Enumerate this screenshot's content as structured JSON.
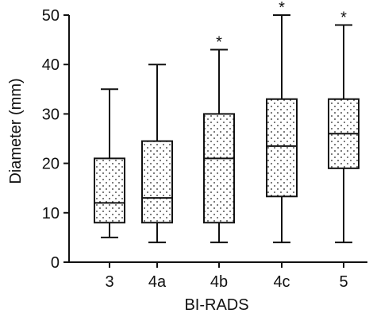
{
  "chart_data": {
    "type": "box",
    "title": "",
    "xlabel": "BI-RADS",
    "ylabel": "Diameter (mm)",
    "ylim": [
      0,
      50
    ],
    "yticks": [
      "0",
      "10",
      "20",
      "30",
      "40",
      "50"
    ],
    "categories": [
      "3",
      "4a",
      "4b",
      "4c",
      "5"
    ],
    "boxes": [
      {
        "category": "3",
        "min": 5,
        "q1": 8,
        "median": 12,
        "q3": 21,
        "max": 35,
        "outlier_marker": ""
      },
      {
        "category": "4a",
        "min": 4,
        "q1": 8,
        "median": 13,
        "q3": 24.5,
        "max": 40,
        "outlier_marker": ""
      },
      {
        "category": "4b",
        "min": 4,
        "q1": 8,
        "median": 21,
        "q3": 30,
        "max": 43,
        "outlier_marker": "*"
      },
      {
        "category": "4c",
        "min": 4,
        "q1": 13.3,
        "median": 23.5,
        "q3": 33,
        "max": 50,
        "outlier_marker": "*"
      },
      {
        "category": "5",
        "min": 4,
        "q1": 19,
        "median": 26,
        "q3": 33,
        "max": 48,
        "outlier_marker": "*"
      }
    ],
    "box_fill": "dotted",
    "colors": {
      "line": "#111111",
      "dots": "#222222",
      "background": "#ffffff"
    },
    "grid": false,
    "legend": "none"
  }
}
